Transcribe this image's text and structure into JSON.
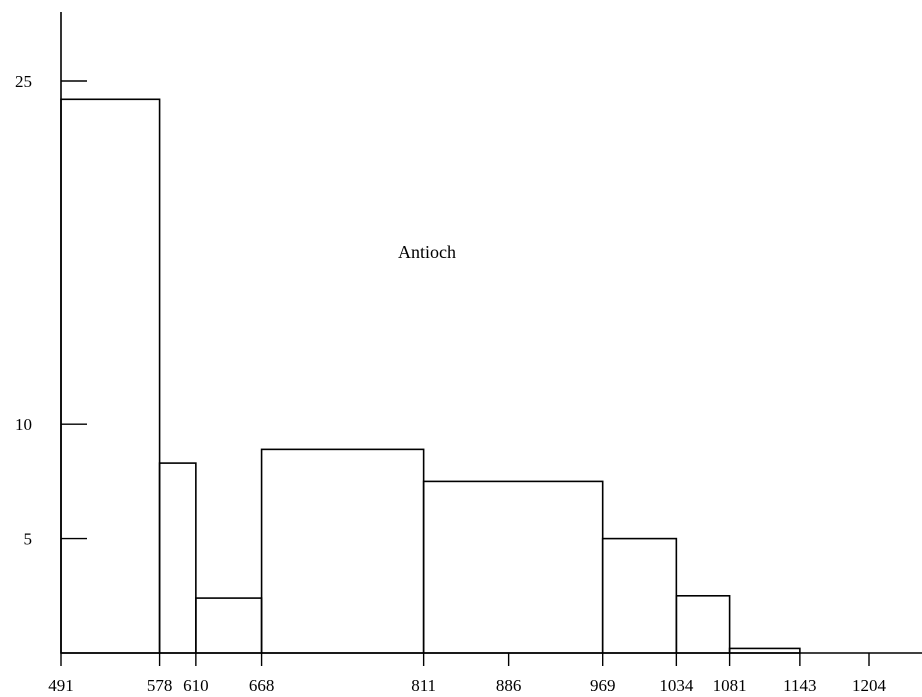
{
  "chart_data": {
    "type": "bar",
    "title": "",
    "annotation": "Antioch",
    "xlabel": "",
    "ylabel": "",
    "x_ticks": [
      491,
      578,
      610,
      668,
      811,
      886,
      969,
      1034,
      1081,
      1143,
      1204
    ],
    "y_ticks": [
      5,
      10,
      25
    ],
    "xlim": [
      491,
      1204
    ],
    "ylim": [
      0,
      25
    ],
    "bins": [
      {
        "start": 491,
        "end": 578,
        "value": 24.2
      },
      {
        "start": 578,
        "end": 610,
        "value": 8.3
      },
      {
        "start": 610,
        "end": 668,
        "value": 2.4
      },
      {
        "start": 668,
        "end": 811,
        "value": 8.9
      },
      {
        "start": 811,
        "end": 969,
        "value": 7.5
      },
      {
        "start": 969,
        "end": 1034,
        "value": 5.0
      },
      {
        "start": 1034,
        "end": 1081,
        "value": 2.5
      },
      {
        "start": 1081,
        "end": 1143,
        "value": 0.2
      }
    ]
  }
}
